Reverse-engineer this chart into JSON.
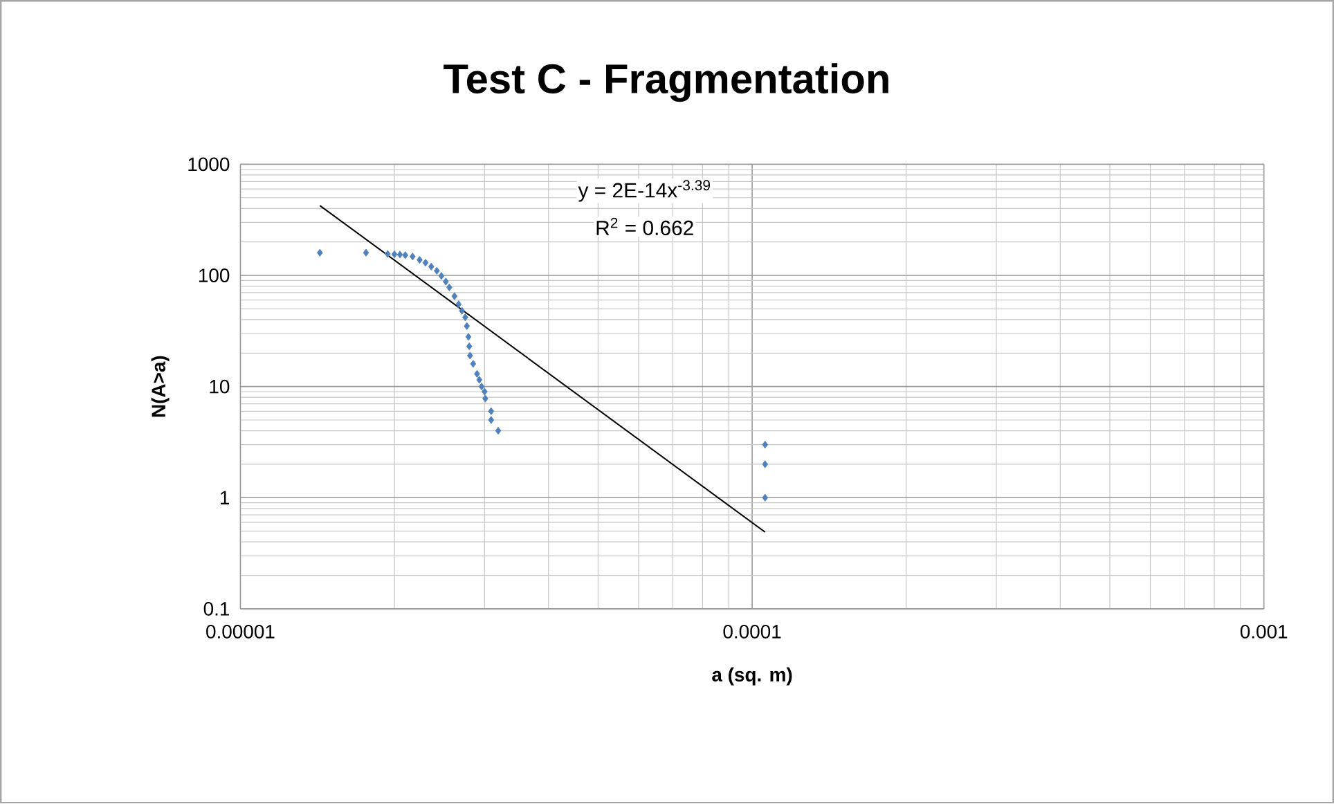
{
  "chart_data": {
    "type": "scatter",
    "title": "Test C - Fragmentation",
    "xlabel": "a (sq. m)",
    "ylabel": "N(A>a)",
    "log": "xy",
    "grid": true,
    "xlim": [
      1e-05,
      0.001
    ],
    "ylim": [
      0.1,
      1000
    ],
    "xticks": [
      {
        "value": 1e-05,
        "label": "0.00001"
      },
      {
        "value": 0.0001,
        "label": "0.0001"
      },
      {
        "value": 0.001,
        "label": "0.001"
      }
    ],
    "yticks": [
      0.1,
      1,
      10,
      100,
      1000
    ],
    "annotations": [
      "y = 2E-14x$^{-3.39}$",
      "R$^{2}$ = 0.662"
    ],
    "series": [
      {
        "marker": "diamond",
        "color": "#4f81bd",
        "x": [
          1.43e-05,
          1.76e-05,
          1.94e-05,
          2e-05,
          2.05e-05,
          2.1e-05,
          2.17e-05,
          2.24e-05,
          2.3e-05,
          2.36e-05,
          2.42e-05,
          2.47e-05,
          2.52e-05,
          2.56e-05,
          2.62e-05,
          2.67e-05,
          2.71e-05,
          2.75e-05,
          2.77e-05,
          2.79e-05,
          2.8e-05,
          2.81e-05,
          2.85e-05,
          2.9e-05,
          2.93e-05,
          2.96e-05,
          3e-05,
          3.01e-05,
          3.09e-05,
          3.09e-05,
          3.19e-05,
          0.000106,
          0.000106,
          0.000106
        ],
        "values": [
          160,
          160,
          156,
          155,
          154,
          152,
          148,
          138,
          130,
          120,
          110,
          99,
          88,
          78,
          65,
          55,
          48,
          42,
          35,
          28,
          23,
          19,
          16,
          13,
          11.5,
          10,
          9,
          7.8,
          6,
          5,
          4,
          3,
          2,
          1
        ]
      },
      {
        "type": "line",
        "marker": "none",
        "line_style": "solid",
        "color": "#000000",
        "x": [
          1.43e-05,
          0.000106
        ],
        "values": [
          425,
          0.49
        ]
      }
    ]
  }
}
